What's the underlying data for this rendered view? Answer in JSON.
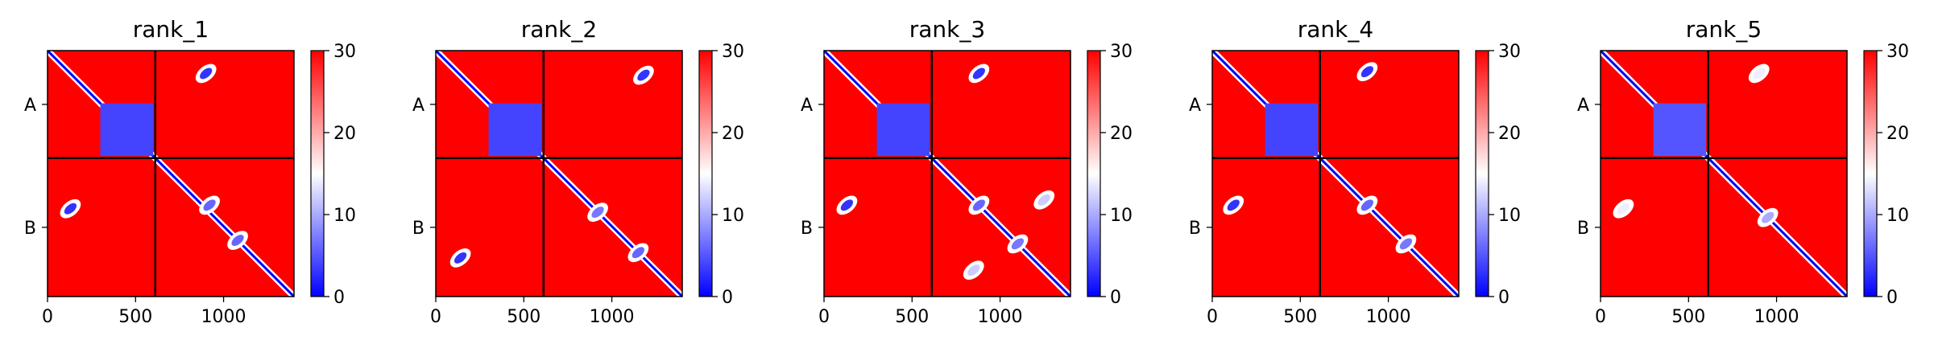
{
  "chart_data": {
    "type": "heatmap",
    "colorbar": {
      "ticks": [
        0,
        10,
        20,
        30
      ],
      "range": [
        0,
        30
      ],
      "colors": [
        "#0000ff",
        "#ffffff",
        "#ff0000"
      ]
    },
    "x_ticks": [
      0,
      500,
      1000
    ],
    "x_range": [
      0,
      1400
    ],
    "chain_labels": [
      "A",
      "B"
    ],
    "chain_boundaries": [
      0,
      612,
      1400
    ],
    "panels": [
      {
        "title": "rank_1",
        "features": [
          {
            "kind": "diagonal",
            "from": 0,
            "to": 1400
          },
          {
            "kind": "block",
            "x": [
              300,
              600
            ],
            "y": [
              300,
              600
            ],
            "value": 4
          },
          {
            "kind": "blob",
            "x": 900,
            "y": 130,
            "value": 3
          },
          {
            "kind": "blob",
            "x": 130,
            "y": 900,
            "value": 3
          },
          {
            "kind": "blob",
            "x": 920,
            "y": 880,
            "value": 6
          },
          {
            "kind": "blob",
            "x": 1080,
            "y": 1080,
            "value": 6
          }
        ]
      },
      {
        "title": "rank_2",
        "features": [
          {
            "kind": "diagonal",
            "from": 0,
            "to": 1400
          },
          {
            "kind": "block",
            "x": [
              300,
              600
            ],
            "y": [
              300,
              600
            ],
            "value": 4
          },
          {
            "kind": "blob",
            "x": 1180,
            "y": 140,
            "value": 3
          },
          {
            "kind": "blob",
            "x": 140,
            "y": 1180,
            "value": 3
          },
          {
            "kind": "blob",
            "x": 920,
            "y": 920,
            "value": 7
          },
          {
            "kind": "blob",
            "x": 1150,
            "y": 1150,
            "value": 6
          }
        ]
      },
      {
        "title": "rank_3",
        "features": [
          {
            "kind": "diagonal",
            "from": 0,
            "to": 1400
          },
          {
            "kind": "block",
            "x": [
              300,
              600
            ],
            "y": [
              300,
              600
            ],
            "value": 4
          },
          {
            "kind": "blob",
            "x": 880,
            "y": 130,
            "value": 3
          },
          {
            "kind": "blob",
            "x": 130,
            "y": 880,
            "value": 3
          },
          {
            "kind": "blob",
            "x": 880,
            "y": 880,
            "value": 6
          },
          {
            "kind": "blob",
            "x": 1100,
            "y": 1100,
            "value": 7
          },
          {
            "kind": "blob",
            "x": 850,
            "y": 1250,
            "value": 12
          },
          {
            "kind": "blob",
            "x": 1250,
            "y": 850,
            "value": 12
          }
        ]
      },
      {
        "title": "rank_4",
        "features": [
          {
            "kind": "diagonal",
            "from": 0,
            "to": 1400
          },
          {
            "kind": "block",
            "x": [
              300,
              600
            ],
            "y": [
              300,
              600
            ],
            "value": 4
          },
          {
            "kind": "blob",
            "x": 880,
            "y": 120,
            "value": 3
          },
          {
            "kind": "blob",
            "x": 120,
            "y": 880,
            "value": 3
          },
          {
            "kind": "blob",
            "x": 880,
            "y": 880,
            "value": 6
          },
          {
            "kind": "blob",
            "x": 1100,
            "y": 1100,
            "value": 7
          }
        ]
      },
      {
        "title": "rank_5",
        "features": [
          {
            "kind": "diagonal",
            "from": 0,
            "to": 1400
          },
          {
            "kind": "block",
            "x": [
              300,
              600
            ],
            "y": [
              300,
              600
            ],
            "value": 5
          },
          {
            "kind": "blob",
            "x": 900,
            "y": 130,
            "value": 14
          },
          {
            "kind": "blob",
            "x": 130,
            "y": 900,
            "value": 14
          },
          {
            "kind": "blob",
            "x": 950,
            "y": 950,
            "value": 10
          }
        ]
      }
    ]
  }
}
